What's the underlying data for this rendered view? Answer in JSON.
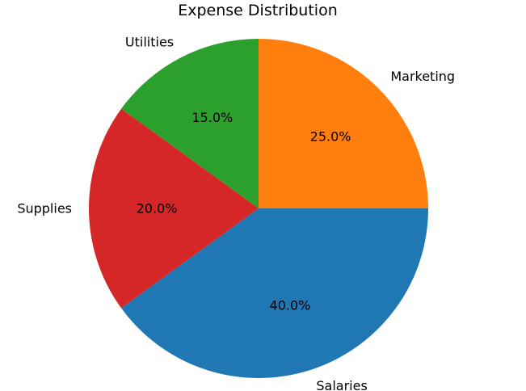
{
  "chart_data": {
    "type": "pie",
    "title": "Expense Distribution",
    "start_angle_deg": 90,
    "direction": "counterclockwise",
    "slices": [
      {
        "label": "Utilities",
        "value": 15,
        "pct_label": "15.0%",
        "color": "#2ca02c"
      },
      {
        "label": "Supplies",
        "value": 20,
        "pct_label": "20.0%",
        "color": "#d62728"
      },
      {
        "label": "Salaries",
        "value": 40,
        "pct_label": "40.0%",
        "color": "#1f77b4"
      },
      {
        "label": "Marketing",
        "value": 25,
        "pct_label": "25.0%",
        "color": "#ff7f0e"
      }
    ]
  }
}
